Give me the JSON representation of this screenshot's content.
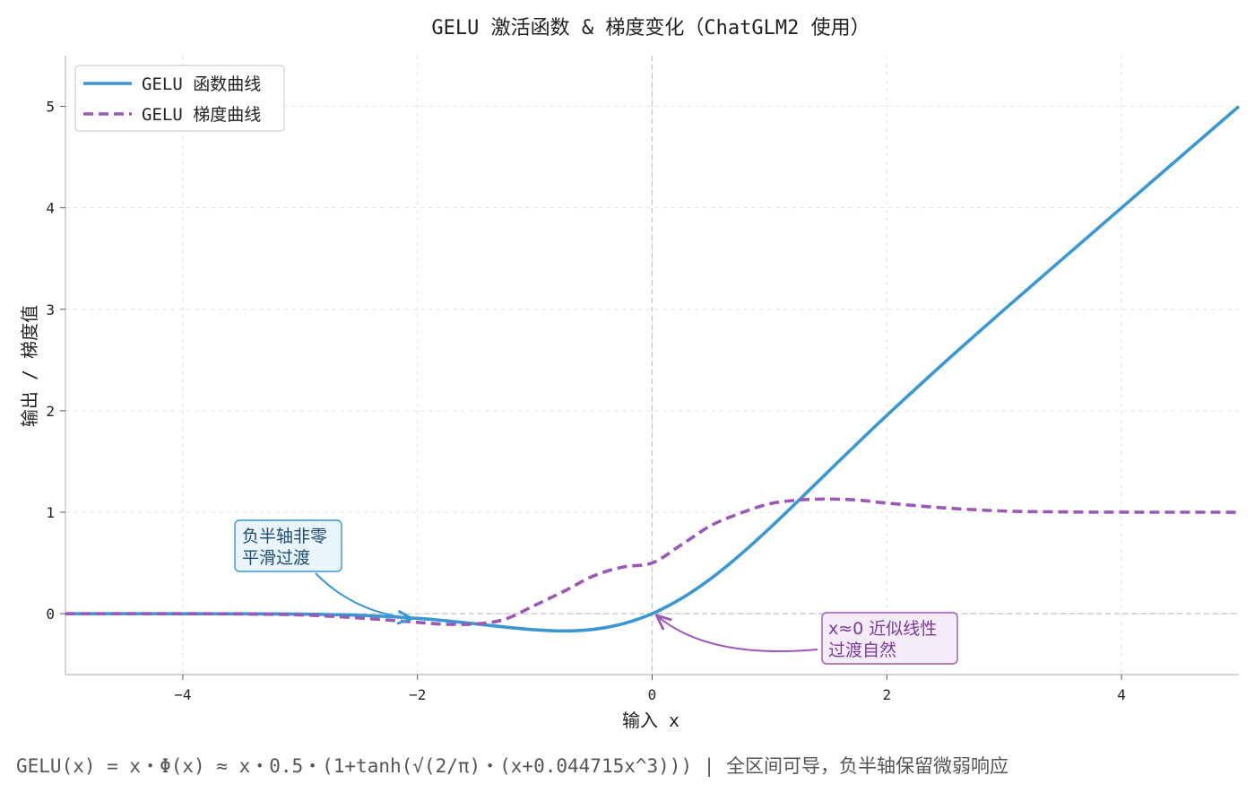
{
  "chart_data": {
    "type": "line",
    "title": "GELU 激活函数 & 梯度变化（ChatGLM2 使用）",
    "xlabel": "输入 x",
    "ylabel": "输出 / 梯度值",
    "xlim": [
      -5,
      5
    ],
    "ylim": [
      -0.6,
      5.5
    ],
    "xticks": [
      -4,
      -2,
      0,
      2,
      4
    ],
    "yticks": [
      0,
      1,
      2,
      3,
      4,
      5
    ],
    "xtick_labels": [
      "−4",
      "−2",
      "0",
      "2",
      "4"
    ],
    "ytick_labels": [
      "0",
      "1",
      "2",
      "3",
      "4",
      "5"
    ],
    "grid": true,
    "legend_position": "top-left",
    "x": [
      -5,
      -4.5,
      -4,
      -3.5,
      -3,
      -2.5,
      -2,
      -1.75,
      -1.5,
      -1.25,
      -1,
      -0.75,
      -0.5,
      -0.25,
      0,
      0.25,
      0.5,
      0.75,
      1,
      1.25,
      1.5,
      1.75,
      2,
      2.5,
      3,
      3.5,
      4,
      4.5,
      5
    ],
    "series": [
      {
        "name": "GELU 函数曲线",
        "style": "solid",
        "color": "#3a97d4",
        "values": [
          0,
          -0.0,
          -0.0001,
          -0.0008,
          -0.0036,
          -0.0155,
          -0.0454,
          -0.0702,
          -0.1002,
          -0.1321,
          -0.1588,
          -0.17,
          -0.1543,
          -0.0993,
          0,
          0.1507,
          0.3457,
          0.58,
          0.8412,
          1.1179,
          1.3998,
          1.6798,
          1.9546,
          2.4845,
          2.9964,
          3.4992,
          3.9999,
          4.5,
          5.0
        ]
      },
      {
        "name": "GELU 梯度曲线",
        "style": "dashed",
        "color": "#9b59b6",
        "values": [
          0,
          -0.0,
          -0.0005,
          -0.003,
          -0.012,
          -0.042,
          -0.0852,
          -0.104,
          -0.1005,
          -0.053,
          0.083,
          0.222,
          0.372,
          0.46,
          0.5,
          0.68,
          0.868,
          0.99,
          1.083,
          1.12,
          1.13,
          1.12,
          1.09,
          1.042,
          1.012,
          1.003,
          1.0005,
          1.0001,
          1.0
        ]
      }
    ],
    "annotations": [
      {
        "text_lines": [
          "负半轴非零",
          "平滑过渡"
        ],
        "point": [
          -2,
          -0.04
        ],
        "color": "#3a97d4",
        "text_color": "#1a4c72",
        "bg": "#eaf4fb"
      },
      {
        "text_lines": [
          "x≈0 近似线性",
          "过渡自然"
        ],
        "point": [
          0,
          0
        ],
        "color": "#9b59b6",
        "text_color": "#7a3a9a",
        "bg": "#f4ecf8"
      }
    ],
    "footer": "GELU(x) = x・Φ(x) ≈ x・0.5・(1+tanh(√(2/π)・(x+0.044715x^3)))  |  全区间可导，负半轴保留微弱响应"
  }
}
